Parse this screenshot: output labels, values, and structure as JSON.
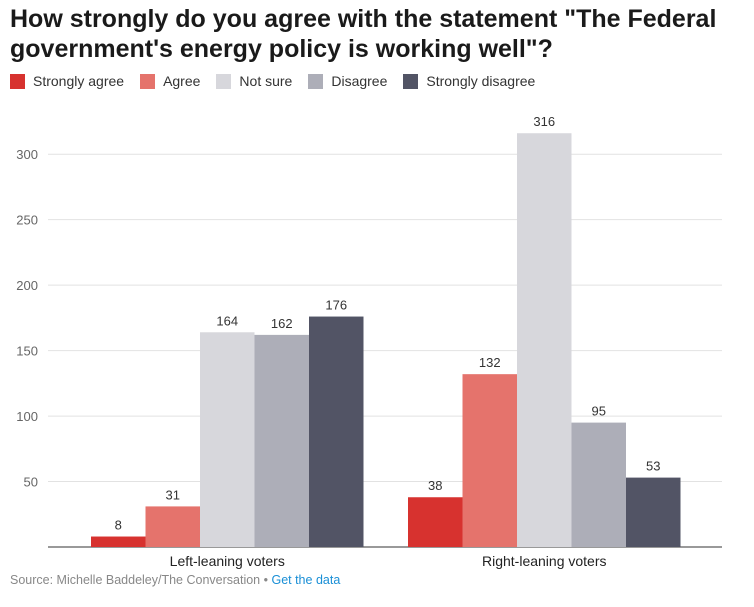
{
  "title": "How strongly do you agree with the statement \"The Federal government's energy policy is working well\"?",
  "chart_data": {
    "type": "bar",
    "categories": [
      "Left-leaning voters",
      "Right-leaning voters"
    ],
    "series": [
      {
        "name": "Strongly agree",
        "color": "#d7322f",
        "values": [
          8,
          38
        ]
      },
      {
        "name": "Agree",
        "color": "#e5736c",
        "values": [
          31,
          132
        ]
      },
      {
        "name": "Not sure",
        "color": "#d7d7dc",
        "values": [
          164,
          316
        ]
      },
      {
        "name": "Disagree",
        "color": "#adaeb8",
        "values": [
          162,
          95
        ]
      },
      {
        "name": "Strongly disagree",
        "color": "#525465",
        "values": [
          176,
          53
        ]
      }
    ],
    "ylim": [
      0,
      320
    ],
    "yticks": [
      50,
      100,
      150,
      200,
      250,
      300
    ],
    "grid": true,
    "data_labels": true,
    "legend_position": "top-left"
  },
  "footer": {
    "source": "Source: Michelle Baddeley/The Conversation",
    "separator": " • ",
    "link": "Get the data"
  }
}
